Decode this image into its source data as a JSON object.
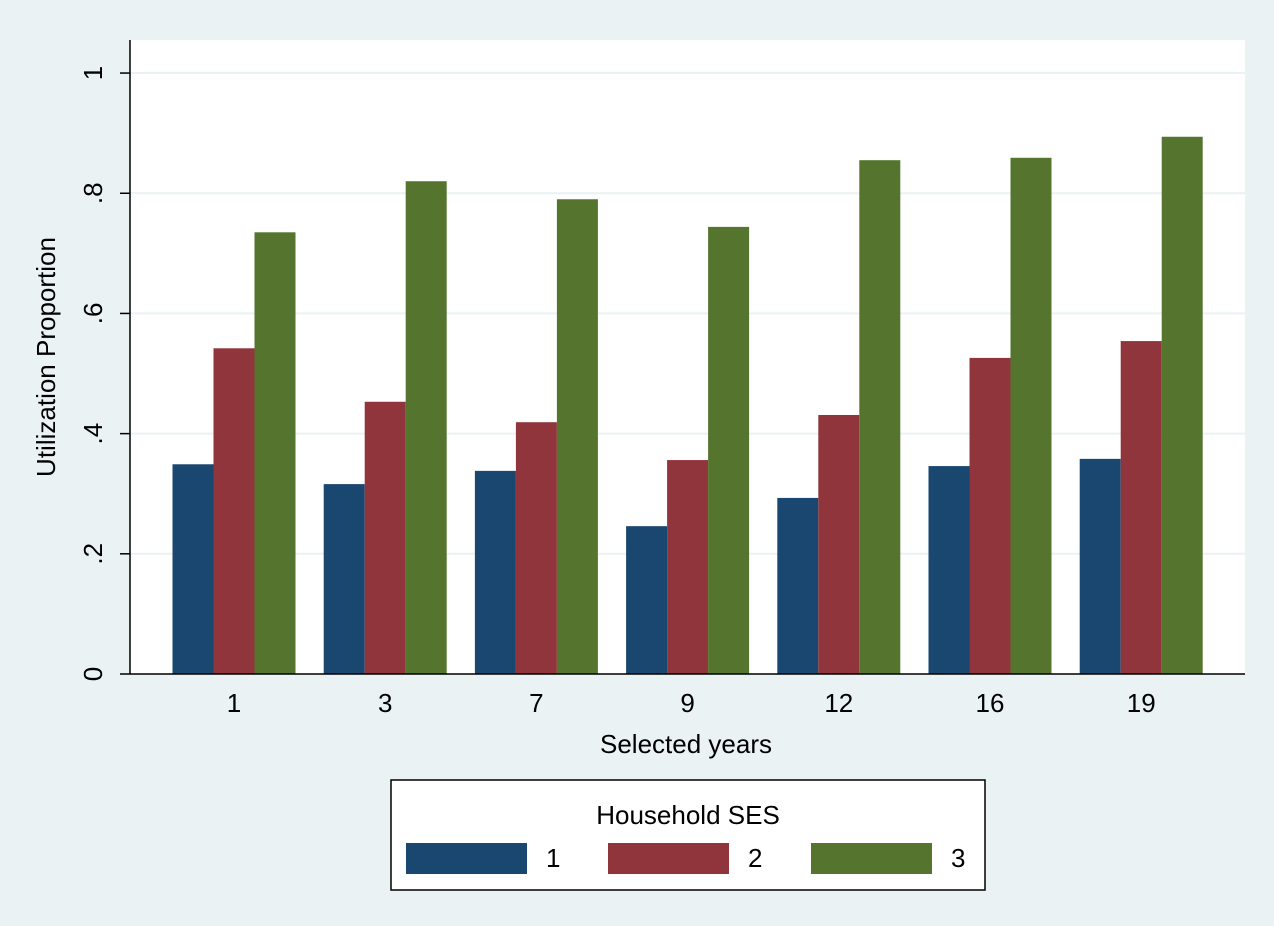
{
  "chart_data": {
    "type": "bar",
    "x_label": "Selected years",
    "y_label": "Utilization Proportion",
    "legend_title": "Household SES",
    "categories": [
      "1",
      "3",
      "7",
      "9",
      "12",
      "16",
      "19"
    ],
    "series": [
      {
        "name": "1",
        "color": "#1a476f",
        "values": [
          0.349,
          0.316,
          0.338,
          0.246,
          0.293,
          0.346,
          0.358
        ]
      },
      {
        "name": "2",
        "color": "#90353b",
        "values": [
          0.542,
          0.453,
          0.419,
          0.356,
          0.431,
          0.526,
          0.554
        ]
      },
      {
        "name": "3",
        "color": "#55752f",
        "values": [
          0.735,
          0.82,
          0.79,
          0.744,
          0.855,
          0.859,
          0.894
        ]
      }
    ],
    "ylim": [
      0,
      1.055
    ],
    "yticks": [
      0,
      {
        "value": 0.2,
        "label": ".2"
      },
      {
        "value": 0.4,
        "label": ".4"
      },
      {
        "value": 0.6,
        "label": ".6"
      },
      {
        "value": 0.8,
        "label": ".8"
      },
      1
    ],
    "grid": true
  }
}
